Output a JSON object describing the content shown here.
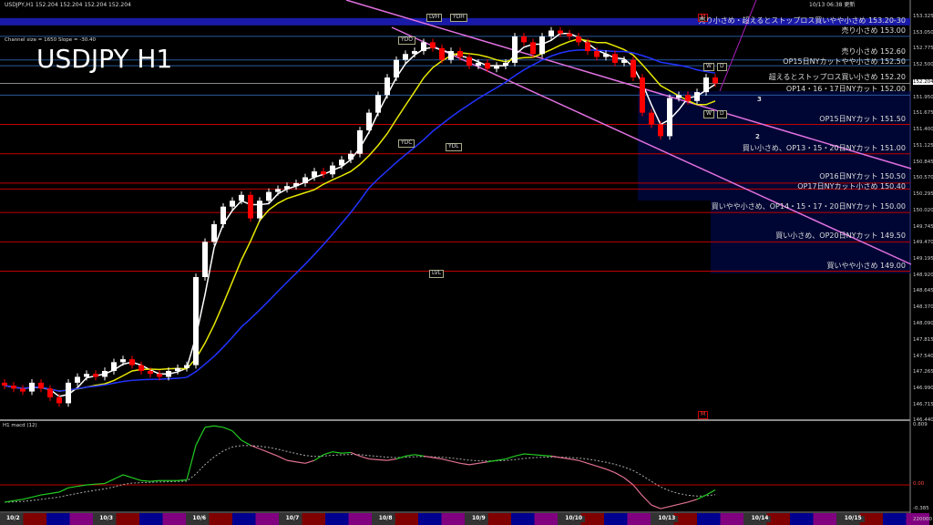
{
  "header": {
    "symbol_line": "USDJPY,H1  152.204 152.204 152.204 152.204",
    "updated": "10/13 06:38 更新",
    "big_title": "USDJPY H1",
    "channel_info": "Channel size = 1650 Slope = -30.40"
  },
  "markers": {
    "lvh": "LVH",
    "ydh": "YDH",
    "ydo": "YDO",
    "ydc": "YDC",
    "ydl": "YDL",
    "lvl": "LVL",
    "w1": "W",
    "d1": "D",
    "w2": "W",
    "d2": "D",
    "m1": "M",
    "m2": "M",
    "n2": "2",
    "n3": "3"
  },
  "levels": [
    {
      "price": 153.25,
      "label": "売り小さめ・超えるとストップロス買いやや小さめ 153.20-30",
      "color": "#1a1aa8",
      "band": true
    },
    {
      "price": 153.0,
      "label": "売り小さめ 153.00",
      "color": "#2a5a9a"
    },
    {
      "price": 152.6,
      "label": "売り小さめ 152.60",
      "color": "#2a5a9a"
    },
    {
      "price": 152.5,
      "label": "OP15日NYカットやや小さめ 152.50",
      "color": "#2a5a9a"
    },
    {
      "price": 152.2,
      "label": "超えるとストップロス買い小さめ 152.20",
      "color": "#888888"
    },
    {
      "price": 152.0,
      "label": "OP14・16・17日NYカット 152.00",
      "color": "#2a5a9a"
    },
    {
      "price": 151.5,
      "label": "OP15日NYカット 151.50",
      "color": "#c00000"
    },
    {
      "price": 151.0,
      "label": "買い小さめ、OP13・15・20日NYカット 151.00",
      "color": "#c00000"
    },
    {
      "price": 150.5,
      "label": "OP16日NYカット 150.50",
      "color": "#c00000"
    },
    {
      "price": 150.4,
      "label": "OP17日NYカット小さめ 150.40",
      "color": "#c00000"
    },
    {
      "price": 150.0,
      "label": "買いやや小さめ、OP14・15・17・20日NYカット 150.00",
      "color": "#c00000"
    },
    {
      "price": 149.5,
      "label": "買い小さめ、OP20日NYカット 149.50",
      "color": "#c00000"
    },
    {
      "price": 149.0,
      "label": "買いやや小さめ 149.00",
      "color": "#c00000"
    }
  ],
  "price_axis": {
    "ticks": [
      "153.325",
      "153.050",
      "152.775",
      "152.500",
      "152.204",
      "151.950",
      "151.675",
      "151.400",
      "151.125",
      "150.845",
      "150.570",
      "150.295",
      "150.020",
      "149.745",
      "149.470",
      "149.195",
      "148.920",
      "148.645",
      "148.370",
      "148.090",
      "147.815",
      "147.540",
      "147.265",
      "146.990",
      "146.715",
      "146.440"
    ],
    "current": "152.204"
  },
  "macd": {
    "label": "H1  macd (12)",
    "ticks": [
      "0.809",
      "0.00",
      "-0.385"
    ],
    "volume_label": "220000"
  },
  "dates": [
    "10/2",
    "10/3",
    "10/6",
    "10/7",
    "10/8",
    "10/9",
    "10/10",
    "10/13",
    "10/14",
    "10/15"
  ],
  "colors": {
    "bull": "#ffffff",
    "bear": "#ff0000",
    "ma_fast": "#ffffff",
    "ma_mid": "#e8e800",
    "ma_slow": "#2233ff",
    "channel": "#e070e0",
    "macd_up": "#22cc22",
    "macd_down": "#e07090"
  },
  "chart_data": {
    "type": "candlestick",
    "symbol": "USDJPY",
    "timeframe": "H1",
    "ylim": [
      146.44,
      153.325
    ],
    "close": [
      147.05,
      147.0,
      146.95,
      147.1,
      147.0,
      146.85,
      146.75,
      147.1,
      147.2,
      147.25,
      147.2,
      147.3,
      147.45,
      147.5,
      147.4,
      147.3,
      147.25,
      147.2,
      147.3,
      147.35,
      147.4,
      148.9,
      149.5,
      149.8,
      150.1,
      150.2,
      150.3,
      149.9,
      150.2,
      150.35,
      150.4,
      150.45,
      150.5,
      150.6,
      150.7,
      150.65,
      150.8,
      150.9,
      151.0,
      151.4,
      151.7,
      152.0,
      152.3,
      152.6,
      152.7,
      152.75,
      152.9,
      152.8,
      152.6,
      152.75,
      152.65,
      152.5,
      152.55,
      152.45,
      152.5,
      152.55,
      153.0,
      152.9,
      152.7,
      153.0,
      153.1,
      153.05,
      153.0,
      152.9,
      152.75,
      152.65,
      152.7,
      152.55,
      152.6,
      152.3,
      151.7,
      151.5,
      151.3,
      151.95,
      152.0,
      151.9,
      152.05,
      152.3,
      152.2
    ],
    "macd": [
      -0.24,
      -0.22,
      -0.2,
      -0.17,
      -0.14,
      -0.12,
      -0.1,
      -0.04,
      -0.02,
      0.0,
      0.01,
      0.02,
      0.08,
      0.14,
      0.1,
      0.06,
      0.05,
      0.06,
      0.06,
      0.06,
      0.07,
      0.55,
      0.8,
      0.82,
      0.8,
      0.75,
      0.62,
      0.55,
      0.5,
      0.45,
      0.4,
      0.34,
      0.32,
      0.3,
      0.34,
      0.42,
      0.46,
      0.44,
      0.45,
      0.4,
      0.36,
      0.35,
      0.34,
      0.36,
      0.4,
      0.42,
      0.4,
      0.38,
      0.36,
      0.33,
      0.3,
      0.28,
      0.3,
      0.32,
      0.34,
      0.36,
      0.4,
      0.43,
      0.42,
      0.41,
      0.4,
      0.38,
      0.36,
      0.34,
      0.3,
      0.26,
      0.22,
      0.17,
      0.1,
      0.0,
      -0.15,
      -0.28,
      -0.33,
      -0.3,
      -0.27,
      -0.24,
      -0.2,
      -0.14,
      -0.07
    ]
  }
}
